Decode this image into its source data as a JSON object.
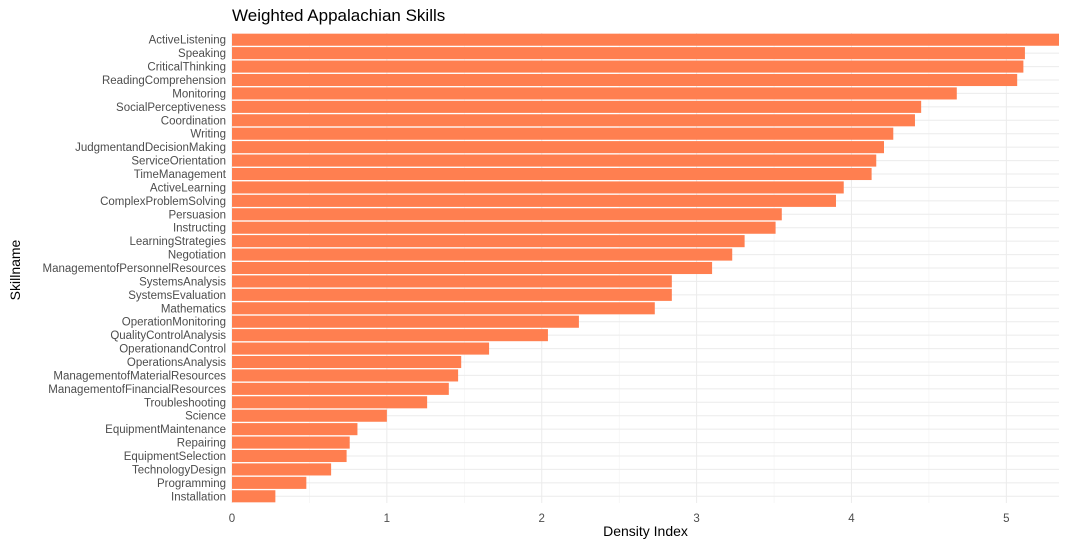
{
  "chart_data": {
    "type": "bar",
    "orientation": "horizontal",
    "title": "Weighted Appalachian Skills",
    "xlabel": "Density Index",
    "ylabel": "Skillname",
    "xlim": [
      0,
      5.34
    ],
    "xticks": [
      0,
      1,
      2,
      3,
      4,
      5
    ],
    "grid": true,
    "bar_color": "#FF7F50",
    "categories": [
      "ActiveListening",
      "Speaking",
      "CriticalThinking",
      "ReadingComprehension",
      "Monitoring",
      "SocialPerceptiveness",
      "Coordination",
      "Writing",
      "JudgmentandDecisionMaking",
      "ServiceOrientation",
      "TimeManagement",
      "ActiveLearning",
      "ComplexProblemSolving",
      "Persuasion",
      "Instructing",
      "LearningStrategies",
      "Negotiation",
      "ManagementofPersonnelResources",
      "SystemsAnalysis",
      "SystemsEvaluation",
      "Mathematics",
      "OperationMonitoring",
      "QualityControlAnalysis",
      "OperationandControl",
      "OperationsAnalysis",
      "ManagementofMaterialResources",
      "ManagementofFinancialResources",
      "Troubleshooting",
      "Science",
      "EquipmentMaintenance",
      "Repairing",
      "EquipmentSelection",
      "TechnologyDesign",
      "Programming",
      "Installation"
    ],
    "values": [
      5.34,
      5.12,
      5.11,
      5.07,
      4.68,
      4.45,
      4.41,
      4.27,
      4.21,
      4.16,
      4.13,
      3.95,
      3.9,
      3.55,
      3.51,
      3.31,
      3.23,
      3.1,
      2.84,
      2.84,
      2.73,
      2.24,
      2.04,
      1.66,
      1.48,
      1.46,
      1.4,
      1.26,
      1.0,
      0.81,
      0.76,
      0.74,
      0.64,
      0.48,
      0.28
    ]
  }
}
